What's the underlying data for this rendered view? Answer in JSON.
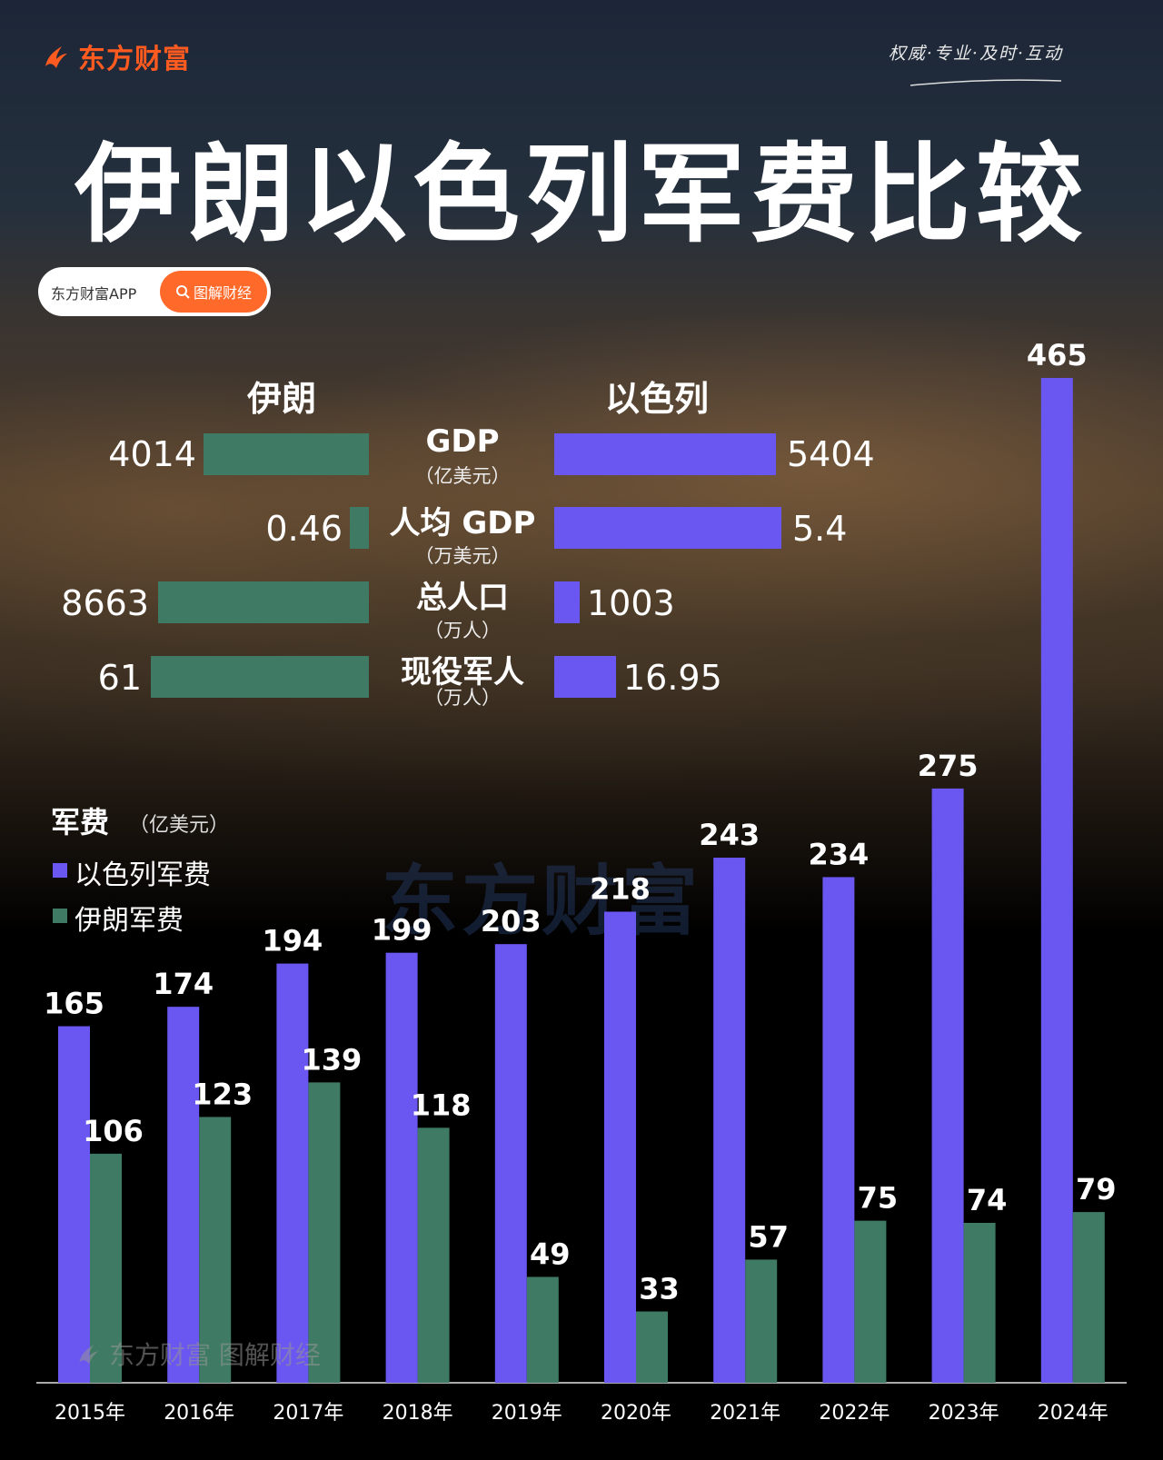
{
  "brand": {
    "name": "东方财富",
    "slogan": "权威·专业·及时·互动"
  },
  "title": "伊朗以色列军费比较",
  "pill": {
    "app": "东方财富APP",
    "search": "图解财经"
  },
  "comparison": {
    "left_header": "伊朗",
    "right_header": "以色列",
    "rows": [
      {
        "label": "GDP",
        "unit": "（亿美元）",
        "iran": "4014",
        "israel": "5404"
      },
      {
        "label": "人均 GDP",
        "unit": "（万美元）",
        "iran": "0.46",
        "israel": "5.4"
      },
      {
        "label": "总人口",
        "unit": "（万人）",
        "iran": "8663",
        "israel": "1003"
      },
      {
        "label": "现役军人",
        "unit": "（万人）",
        "iran": "61",
        "israel": "16.95"
      }
    ]
  },
  "colors": {
    "israel": "#6a56f0",
    "iran": "#3e7a64",
    "logo": "#ff5a1f"
  },
  "icons": [
    "flame-logo-icon",
    "search-icon"
  ],
  "legend": {
    "title": "军费",
    "unit": "（亿美元）",
    "israel": "以色列军费",
    "iran": "伊朗军费"
  },
  "watermark": "东方财富",
  "footer_watermark": "东方财富 图解财经",
  "chart_data": {
    "type": "bar",
    "categories": [
      "2015年",
      "2016年",
      "2017年",
      "2018年",
      "2019年",
      "2020年",
      "2021年",
      "2022年",
      "2023年",
      "2024年"
    ],
    "series": [
      {
        "name": "以色列军费",
        "values": [
          165,
          174,
          194,
          199,
          203,
          218,
          243,
          234,
          275,
          465
        ]
      },
      {
        "name": "伊朗军费",
        "values": [
          106,
          123,
          139,
          118,
          49,
          33,
          57,
          75,
          74,
          79
        ]
      }
    ],
    "ylim": [
      0,
      465
    ]
  }
}
